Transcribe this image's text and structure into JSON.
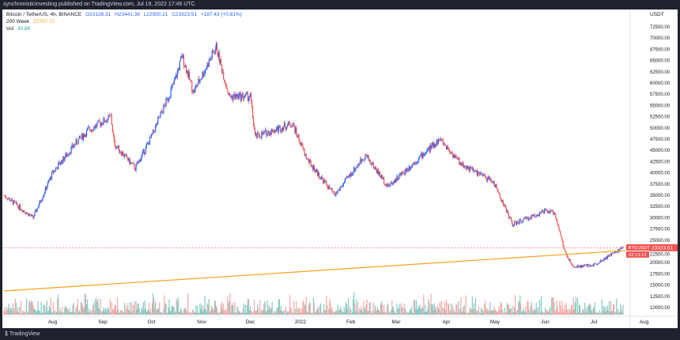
{
  "header": {
    "published": "synchronisticinvesting published on TradingView.com, Jul 19, 2022 17:46 UTC"
  },
  "legend": {
    "symbol": "Bitcoin / TetherUS, 4h, BINANCE",
    "open": "O23128.31",
    "high": "H23441.38",
    "low": "L22950.21",
    "close": "C23323.51",
    "change": "+187.43 (+0.81%)",
    "ma_label": "200 Week",
    "ma_value": "22707.72",
    "vol_label": "Vol",
    "vol_value": "30.8K"
  },
  "price_tag": {
    "symbol": "BTCUSDT",
    "price": "23323.51",
    "countdown": "02:13:13"
  },
  "footer": {
    "brand": "TradingView"
  },
  "chart_data": {
    "type": "candlestick",
    "currency_label": "USDT",
    "ylim": [
      7000,
      75000
    ],
    "y_ticks": [
      10000,
      12500,
      15000,
      17500,
      20000,
      22500,
      25000,
      27500,
      30000,
      32500,
      35000,
      37500,
      40000,
      42500,
      45000,
      47500,
      50000,
      52500,
      55000,
      57500,
      60000,
      62500,
      65000,
      67500,
      70000,
      72500
    ],
    "x_ticks": [
      {
        "date": "2021-08-01",
        "label": "Aug"
      },
      {
        "date": "2021-09-01",
        "label": "Sep"
      },
      {
        "date": "2021-10-01",
        "label": "Oct"
      },
      {
        "date": "2021-11-01",
        "label": "Nov"
      },
      {
        "date": "2021-12-01",
        "label": "Dec"
      },
      {
        "date": "2022-01-01",
        "label": "2022"
      },
      {
        "date": "2022-02-01",
        "label": "Feb"
      },
      {
        "date": "2022-03-01",
        "label": "Mar"
      },
      {
        "date": "2022-04-01",
        "label": "Apr"
      },
      {
        "date": "2022-05-01",
        "label": "May"
      },
      {
        "date": "2022-06-01",
        "label": "Jun"
      },
      {
        "date": "2022-07-01",
        "label": "Jul"
      },
      {
        "date": "2022-08-01",
        "label": "Aug"
      }
    ],
    "xlim": [
      "2021-07-02",
      "2022-08-10"
    ],
    "price_path": [
      [
        "2021-07-02",
        35000
      ],
      [
        "2021-07-20",
        30000
      ],
      [
        "2021-08-01",
        40000
      ],
      [
        "2021-08-15",
        46500
      ],
      [
        "2021-08-23",
        49500
      ],
      [
        "2021-09-06",
        52500
      ],
      [
        "2021-09-08",
        46500
      ],
      [
        "2021-09-21",
        41000
      ],
      [
        "2021-10-01",
        48000
      ],
      [
        "2021-10-15",
        60000
      ],
      [
        "2021-10-20",
        66000
      ],
      [
        "2021-10-27",
        58000
      ],
      [
        "2021-11-10",
        68000
      ],
      [
        "2021-11-18",
        57000
      ],
      [
        "2021-12-01",
        57000
      ],
      [
        "2021-12-04",
        48000
      ],
      [
        "2021-12-27",
        51000
      ],
      [
        "2022-01-05",
        43000
      ],
      [
        "2022-01-22",
        35000
      ],
      [
        "2022-02-10",
        44000
      ],
      [
        "2022-02-24",
        37000
      ],
      [
        "2022-03-28",
        47500
      ],
      [
        "2022-04-10",
        42000
      ],
      [
        "2022-04-30",
        38000
      ],
      [
        "2022-05-10",
        30000
      ],
      [
        "2022-05-12",
        28500
      ],
      [
        "2022-06-01",
        31500
      ],
      [
        "2022-06-07",
        31000
      ],
      [
        "2022-06-13",
        22500
      ],
      [
        "2022-06-18",
        19000
      ],
      [
        "2022-07-01",
        19500
      ],
      [
        "2022-07-19",
        23323.51
      ]
    ],
    "moving_average": {
      "name": "200 Week",
      "start": [
        "2021-07-02",
        13700
      ],
      "end": [
        "2022-07-19",
        22707.72
      ],
      "color": "#f7a21b"
    },
    "last_price": 23323.51,
    "colors": {
      "up": "#2962ff",
      "down": "#ef5350",
      "vol_up": "#80cbc4",
      "vol_down": "#f7a9a7",
      "price_line": "#ef5350"
    }
  }
}
